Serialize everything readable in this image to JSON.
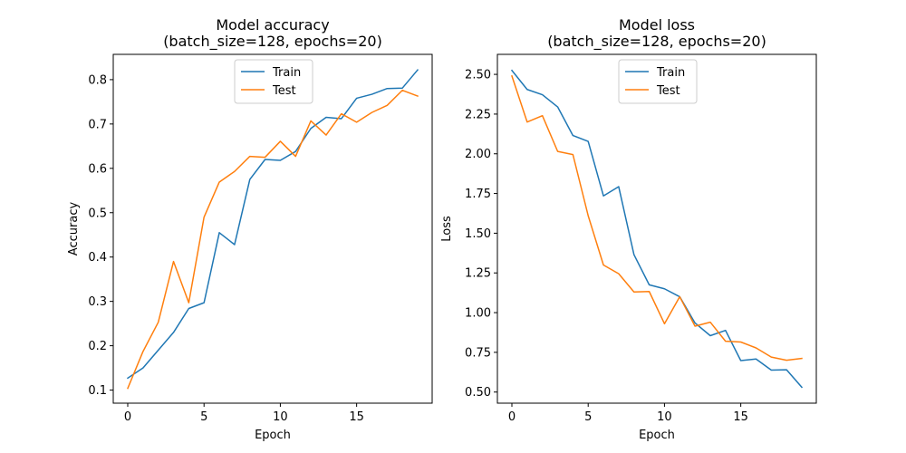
{
  "chart_data": [
    {
      "type": "line",
      "title": "Model accuracy",
      "subtitle": "(batch_size=128, epochs=20)",
      "xlabel": "Epoch",
      "ylabel": "Accuracy",
      "xlim": [
        -0.95,
        19.95
      ],
      "ylim": [
        0.0705,
        0.857
      ],
      "xticks": [
        0,
        5,
        10,
        15
      ],
      "xtick_labels": [
        "0",
        "5",
        "10",
        "15"
      ],
      "yticks": [
        0.1,
        0.2,
        0.3,
        0.4,
        0.5,
        0.6,
        0.7,
        0.8
      ],
      "ytick_labels": [
        "0.1",
        "0.2",
        "0.3",
        "0.4",
        "0.5",
        "0.6",
        "0.7",
        "0.8"
      ],
      "grid": false,
      "legend_position": "top-center",
      "x": [
        0,
        1,
        2,
        3,
        4,
        5,
        6,
        7,
        8,
        9,
        10,
        11,
        12,
        13,
        14,
        15,
        16,
        17,
        18,
        19
      ],
      "series": [
        {
          "name": "Train",
          "color": "#1f77b4",
          "values": [
            0.127,
            0.15,
            0.19,
            0.23,
            0.284,
            0.297,
            0.455,
            0.428,
            0.575,
            0.62,
            0.618,
            0.638,
            0.69,
            0.715,
            0.712,
            0.758,
            0.767,
            0.78,
            0.781,
            0.822
          ]
        },
        {
          "name": "Test",
          "color": "#ff7f0e",
          "values": [
            0.104,
            0.187,
            0.253,
            0.39,
            0.297,
            0.49,
            0.569,
            0.593,
            0.627,
            0.625,
            0.661,
            0.627,
            0.707,
            0.675,
            0.723,
            0.704,
            0.726,
            0.742,
            0.776,
            0.763
          ]
        }
      ]
    },
    {
      "type": "line",
      "title": "Model loss",
      "subtitle": "(batch_size=128, epochs=20)",
      "xlabel": "Epoch",
      "ylabel": "Loss",
      "xlim": [
        -0.95,
        19.95
      ],
      "ylim": [
        0.43,
        2.626
      ],
      "xticks": [
        0,
        5,
        10,
        15
      ],
      "xtick_labels": [
        "0",
        "5",
        "10",
        "15"
      ],
      "yticks": [
        0.5,
        0.75,
        1.0,
        1.25,
        1.5,
        1.75,
        2.0,
        2.25,
        2.5
      ],
      "ytick_labels": [
        "0.50",
        "0.75",
        "1.00",
        "1.25",
        "1.50",
        "1.75",
        "2.00",
        "2.25",
        "2.50"
      ],
      "grid": false,
      "legend_position": "top-center",
      "x": [
        0,
        1,
        2,
        3,
        4,
        5,
        6,
        7,
        8,
        9,
        10,
        11,
        12,
        13,
        14,
        15,
        16,
        17,
        18,
        19
      ],
      "series": [
        {
          "name": "Train",
          "color": "#1f77b4",
          "values": [
            2.525,
            2.405,
            2.372,
            2.295,
            2.115,
            2.078,
            1.735,
            1.793,
            1.365,
            1.175,
            1.15,
            1.1,
            0.935,
            0.855,
            0.888,
            0.698,
            0.708,
            0.638,
            0.64,
            0.53
          ]
        },
        {
          "name": "Test",
          "color": "#ff7f0e",
          "values": [
            2.49,
            2.2,
            2.24,
            2.015,
            1.995,
            1.61,
            1.3,
            1.245,
            1.13,
            1.133,
            0.93,
            1.1,
            0.915,
            0.94,
            0.82,
            0.815,
            0.778,
            0.72,
            0.7,
            0.712
          ]
        }
      ]
    }
  ]
}
